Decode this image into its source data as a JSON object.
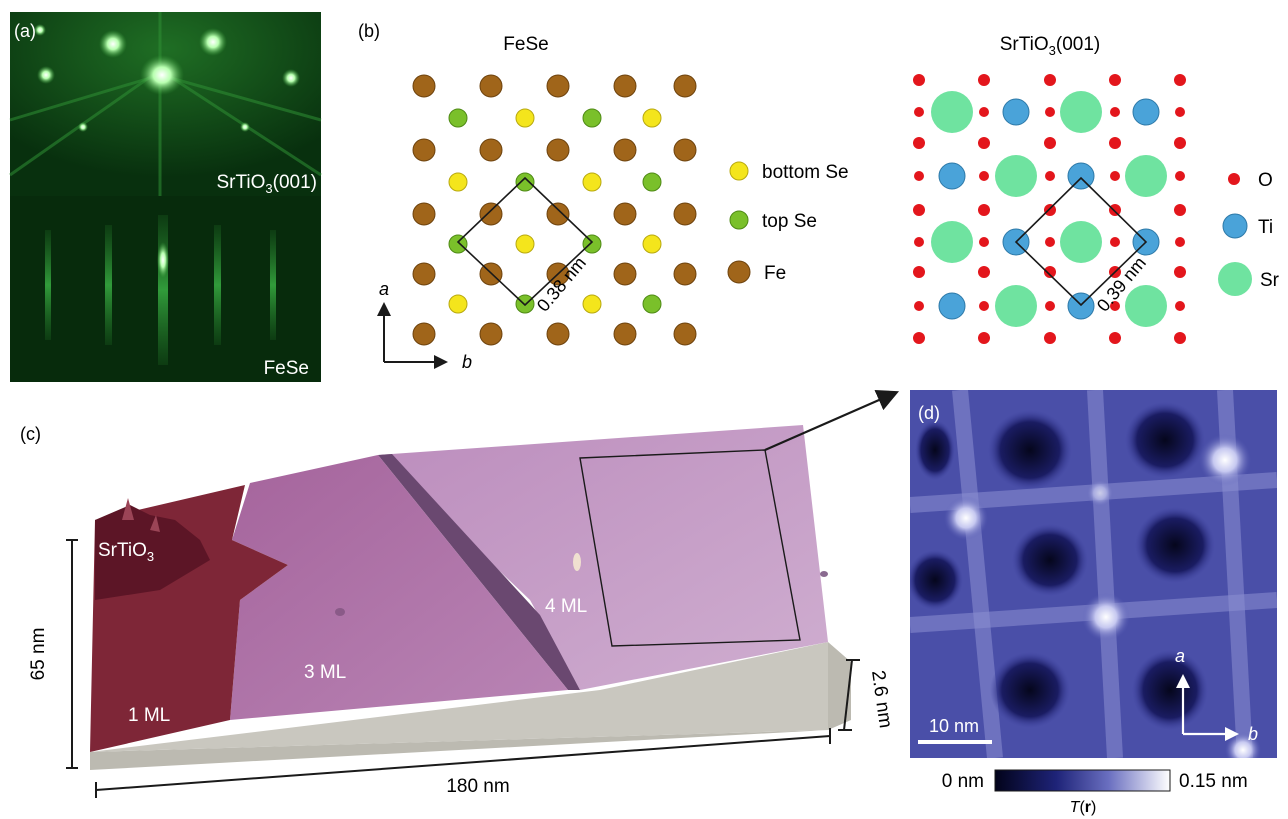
{
  "panel_a": {
    "label": "(a)",
    "top_caption_main": "SrTiO",
    "top_caption_sub": "3",
    "top_caption_end": "(001)",
    "bottom_caption": "FeSe",
    "colors": {
      "bg_top": "#0b3a12",
      "bg_bottom": "#062a0b",
      "streak": "#7cff7c"
    }
  },
  "panel_b": {
    "label": "(b)",
    "fese_title": "FeSe",
    "sto_title_main": "SrTiO",
    "sto_title_sub": "3",
    "sto_title_end": "(001)",
    "fese_cell": "0.38 nm",
    "sto_cell": "0.39 nm",
    "axis_a": "a",
    "axis_b": "b",
    "fese_legend": [
      {
        "label": "bottom Se",
        "color": "#f4e51c"
      },
      {
        "label": "top Se",
        "color": "#7ac02a"
      },
      {
        "label": "Fe",
        "color": "#a0651a"
      }
    ],
    "sto_legend": [
      {
        "label": "O",
        "color": "#e3161c"
      },
      {
        "label": "Ti",
        "color": "#4aa3d9"
      },
      {
        "label": "Sr",
        "color": "#6fe3a0"
      }
    ]
  },
  "panel_c": {
    "label": "(c)",
    "substrate_main": "SrTiO",
    "substrate_sub": "3",
    "layers": [
      "1 ML",
      "3 ML",
      "4 ML"
    ],
    "height_scale": "65 nm",
    "width_scale": "180 nm",
    "depth_scale": "2.6 nm",
    "colors": {
      "ml1": "#7e2637",
      "ml3": "#b276a8",
      "ml4": "#c59bc6",
      "base": "#bfbdb4"
    }
  },
  "panel_d": {
    "label": "(d)",
    "scale_bar": "10 nm",
    "axis_a": "a",
    "axis_b": "b",
    "colorbar_min": "0 nm",
    "colorbar_max": "0.15 nm",
    "colorbar_label_main": "T",
    "colorbar_label_arg": "r",
    "colors": {
      "dark": "#060a2a",
      "mid": "#3a3f98",
      "light": "#ffffff"
    }
  }
}
